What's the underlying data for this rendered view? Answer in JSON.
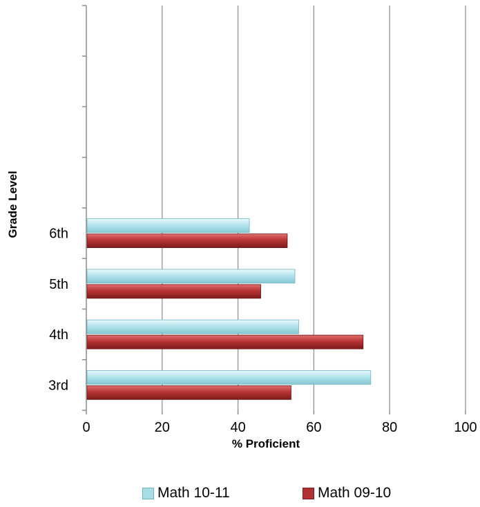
{
  "chart_data": {
    "type": "bar",
    "orientation": "horizontal",
    "categories": [
      "3rd",
      "4th",
      "5th",
      "6th",
      "",
      "",
      "",
      ""
    ],
    "series": [
      {
        "name": "Math 10-11",
        "values": [
          75,
          56,
          55,
          43,
          null,
          null,
          null,
          null
        ],
        "color": "#a9dde6"
      },
      {
        "name": "Math 09-10",
        "values": [
          54,
          73,
          46,
          53,
          null,
          null,
          null,
          null
        ],
        "color": "#b03232"
      }
    ],
    "xlabel": "% Proficient",
    "ylabel": "Grade Level",
    "xlim": [
      0,
      100
    ],
    "xticks": [
      "0",
      "20",
      "40",
      "60",
      "80",
      "100"
    ],
    "grid": "vertical",
    "legend_position": "bottom"
  }
}
